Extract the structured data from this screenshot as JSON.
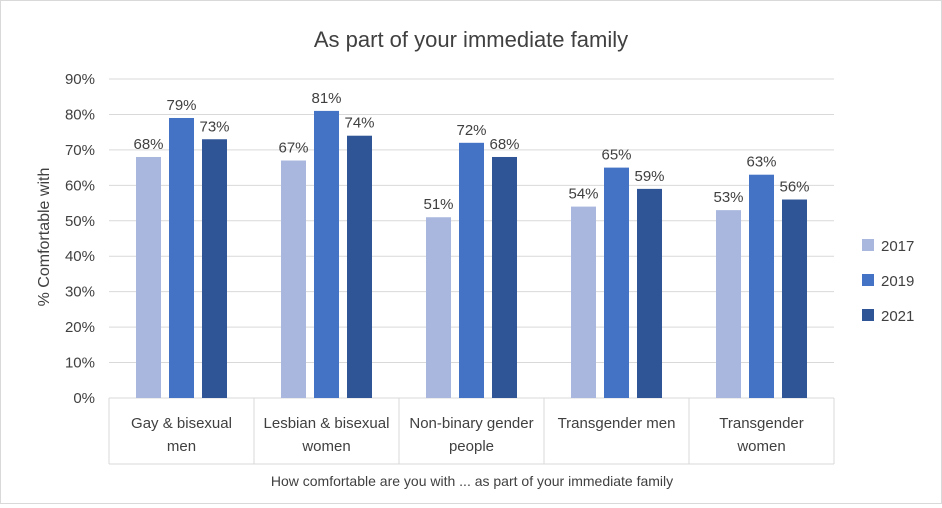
{
  "chart_data": {
    "type": "bar",
    "title": "As part of your immediate family",
    "xlabel": "How comfortable are you with ... as part of your immediate family",
    "ylabel": "% Comfortable with",
    "ylim": [
      0,
      90
    ],
    "yticks": [
      0,
      10,
      20,
      30,
      40,
      50,
      60,
      70,
      80,
      90
    ],
    "ytick_format": "percent",
    "grid": true,
    "legend_position": "right",
    "categories": [
      [
        "Gay & bisexual",
        "men"
      ],
      [
        "Lesbian & bisexual",
        "women"
      ],
      [
        "Non-binary gender",
        "people"
      ],
      [
        "Transgender men"
      ],
      [
        "Transgender",
        "women"
      ]
    ],
    "series": [
      {
        "name": "2017",
        "color": "#a9b7de",
        "values": [
          68,
          67,
          51,
          54,
          53
        ]
      },
      {
        "name": "2019",
        "color": "#4472c4",
        "values": [
          79,
          81,
          72,
          65,
          63
        ]
      },
      {
        "name": "2021",
        "color": "#2f5597",
        "values": [
          73,
          74,
          68,
          59,
          56
        ]
      }
    ],
    "data_labels": true
  }
}
